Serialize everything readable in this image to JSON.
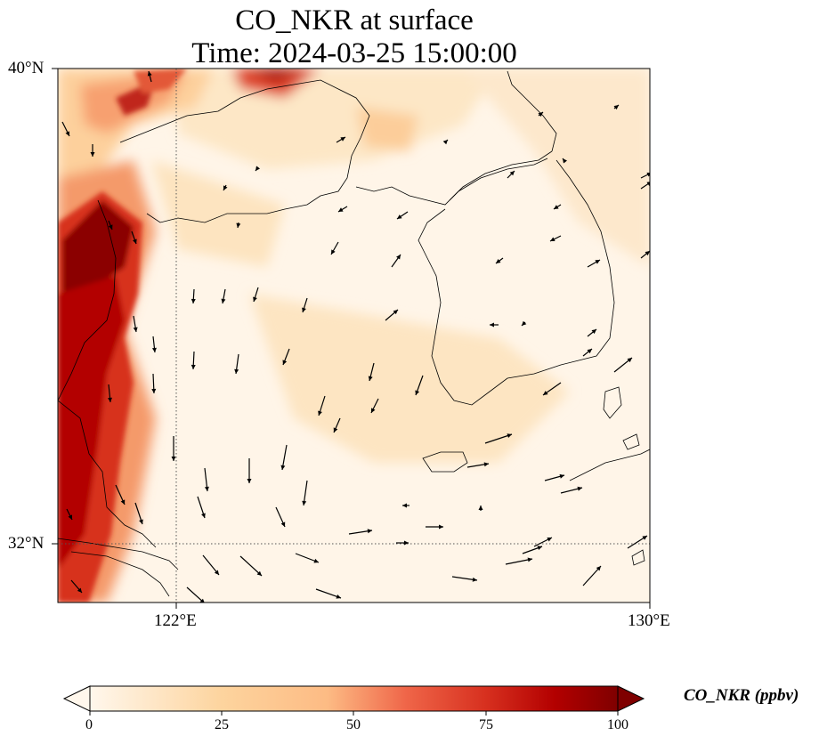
{
  "title_line1": "CO_NKR at surface",
  "title_line2": "Time: 2024-03-25 15:00:00",
  "map": {
    "lat_ticks": [
      "40°N",
      "32°N"
    ],
    "lon_ticks": [
      "122°E",
      "130°E"
    ],
    "lon_range": [
      120,
      130
    ],
    "lat_range": [
      31,
      40
    ],
    "gridlines": "dotted at 122°E and 32°N"
  },
  "colorbar": {
    "label": "CO_NKR (ppbv)",
    "ticks": [
      "0",
      "25",
      "50",
      "75",
      "100"
    ],
    "range": [
      0,
      100
    ],
    "colormap": "OrRd",
    "extend": "both"
  },
  "colors": {
    "low": "#fff7ec",
    "mid": "#fdd49e",
    "high": "#d7301f",
    "max": "#7f0000"
  }
}
